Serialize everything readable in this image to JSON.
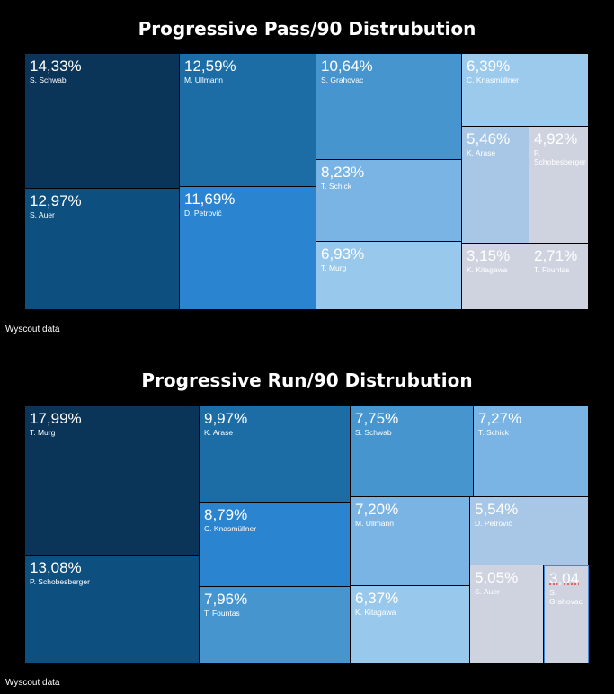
{
  "chart_data": [
    {
      "type": "treemap",
      "title": "Progressive Pass/90 Distrubution",
      "source": "Wyscout data",
      "items": [
        {
          "name": "S. Schwab",
          "label": "14,33%",
          "value": 14.33,
          "color": "#0b3459"
        },
        {
          "name": "M. Ullmann",
          "label": "12,59%",
          "value": 12.59,
          "color": "#1c6da6"
        },
        {
          "name": "S. Grahovac",
          "label": "10,64%",
          "value": 10.64,
          "color": "#4795cf"
        },
        {
          "name": "C. Knasmüllner",
          "label": "6,39%",
          "value": 6.39,
          "color": "#9ccaed"
        },
        {
          "name": "S. Auer",
          "label": "12,97%",
          "value": 12.97,
          "color": "#0d507f"
        },
        {
          "name": "D. Petrović",
          "label": "11,69%",
          "value": 11.69,
          "color": "#2a84d0"
        },
        {
          "name": "T. Schick",
          "label": "8,23%",
          "value": 8.23,
          "color": "#7ab4e4"
        },
        {
          "name": "T. Murg",
          "label": "6,93%",
          "value": 6.93,
          "color": "#98c8ec"
        },
        {
          "name": "K. Arase",
          "label": "5,46%",
          "value": 5.46,
          "color": "#a8c7e6"
        },
        {
          "name": "P. Schobesberger",
          "label": "4,92%",
          "value": 4.92,
          "color": "#cfd3df"
        },
        {
          "name": "K. Kitagawa",
          "label": "3,15%",
          "value": 3.15,
          "color": "#cfd3df"
        },
        {
          "name": "T. Fountas",
          "label": "2,71%",
          "value": 2.71,
          "color": "#cfd3df"
        }
      ]
    },
    {
      "type": "treemap",
      "title": "Progressive Run/90 Distrubution",
      "source": "Wyscout data",
      "items": [
        {
          "name": "T. Murg",
          "label": "17,99%",
          "value": 17.99,
          "color": "#0b3459"
        },
        {
          "name": "K. Arase",
          "label": "9,97%",
          "value": 9.97,
          "color": "#1c6da6"
        },
        {
          "name": "S. Schwab",
          "label": "7,75%",
          "value": 7.75,
          "color": "#4795cf"
        },
        {
          "name": "T. Schick",
          "label": "7,27%",
          "value": 7.27,
          "color": "#7ab4e4"
        },
        {
          "name": "P. Schobesberger",
          "label": "13,08%",
          "value": 13.08,
          "color": "#0d507f"
        },
        {
          "name": "C. Knasmüllner",
          "label": "8,79%",
          "value": 8.79,
          "color": "#2a84d0"
        },
        {
          "name": "T. Fountas",
          "label": "7,96%",
          "value": 7.96,
          "color": "#4795cf"
        },
        {
          "name": "M. Ullmann",
          "label": "7,20%",
          "value": 7.2,
          "color": "#7ab4e4"
        },
        {
          "name": "K. Kitagawa",
          "label": "6,37%",
          "value": 6.37,
          "color": "#98c8ec"
        },
        {
          "name": "D. Petrović",
          "label": "5,54%",
          "value": 5.54,
          "color": "#a8c7e6"
        },
        {
          "name": "S. Auer",
          "label": "5,05%",
          "value": 5.05,
          "color": "#cfd3df"
        },
        {
          "name": "S. Grahovac",
          "label": "3,04",
          "value": 3.04,
          "color": "#cfd3df"
        }
      ]
    }
  ]
}
